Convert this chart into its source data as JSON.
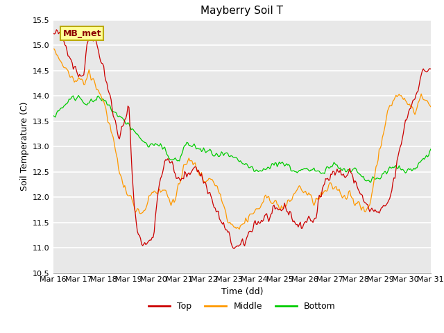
{
  "title": "Mayberry Soil T",
  "xlabel": "Time (dd)",
  "ylabel": "Soil Temperature (C)",
  "annotation": "MB_met",
  "ylim": [
    10.5,
    15.5
  ],
  "yticks": [
    10.5,
    11.0,
    11.5,
    12.0,
    12.5,
    13.0,
    13.5,
    14.0,
    14.5,
    15.0,
    15.5
  ],
  "xtick_labels": [
    "Mar 16",
    "Mar 17",
    "Mar 18",
    "Mar 19",
    "Mar 20",
    "Mar 21",
    "Mar 22",
    "Mar 23",
    "Mar 24",
    "Mar 25",
    "Mar 26",
    "Mar 27",
    "Mar 28",
    "Mar 29",
    "Mar 30",
    "Mar 31"
  ],
  "colors": {
    "top": "#cc0000",
    "middle": "#ff9900",
    "bottom": "#00cc00",
    "bg": "#e8e8e8",
    "plot_bg": "#e8e8e8",
    "annotation_bg": "#ffff99",
    "annotation_border": "#bbaa00"
  },
  "legend_labels": [
    "Top",
    "Middle",
    "Bottom"
  ],
  "seed": 42,
  "n_points": 360,
  "top_base": [
    15.2,
    15.25,
    15.1,
    14.9,
    14.6,
    14.45,
    14.4,
    15.2,
    15.2,
    14.9,
    14.55,
    14.1,
    13.6,
    13.2,
    13.4,
    13.8,
    11.9,
    11.2,
    11.05,
    11.1,
    11.3,
    12.3,
    12.6,
    12.8,
    12.5,
    12.3,
    12.4,
    12.5,
    12.6,
    12.5,
    12.3,
    12.1,
    11.8,
    11.6,
    11.4,
    11.2,
    11.0,
    11.0,
    11.1,
    11.3,
    11.5,
    11.5,
    11.6,
    11.6,
    11.7,
    11.75,
    11.8,
    11.7,
    11.5,
    11.4,
    11.5,
    11.6,
    11.5,
    12.0,
    12.3,
    12.5,
    12.5,
    12.5,
    12.4,
    12.5,
    12.3,
    12.1,
    11.85,
    11.75,
    11.7,
    11.7,
    11.8,
    12.0,
    12.5,
    13.0,
    13.5,
    13.8,
    14.0,
    14.4,
    14.5,
    14.55
  ],
  "middle_base": [
    14.9,
    14.75,
    14.6,
    14.4,
    14.3,
    14.4,
    14.2,
    14.45,
    14.3,
    14.1,
    13.9,
    13.5,
    13.1,
    12.5,
    12.2,
    12.1,
    11.8,
    11.75,
    11.7,
    12.0,
    12.15,
    12.1,
    12.15,
    12.0,
    11.85,
    12.2,
    12.7,
    12.7,
    12.65,
    12.5,
    12.3,
    12.4,
    12.3,
    12.1,
    11.8,
    11.5,
    11.45,
    11.4,
    11.5,
    11.65,
    11.7,
    11.8,
    11.95,
    12.0,
    11.9,
    11.8,
    11.8,
    11.9,
    12.1,
    12.2,
    12.1,
    12.0,
    11.9,
    12.0,
    12.1,
    12.2,
    12.2,
    12.1,
    12.0,
    12.1,
    11.9,
    11.8,
    11.7,
    11.9,
    12.5,
    13.0,
    13.5,
    13.8,
    14.0,
    14.0,
    13.9,
    13.8,
    13.7,
    14.0,
    13.9,
    13.8
  ],
  "bottom_base": [
    13.6,
    13.7,
    13.8,
    13.9,
    13.95,
    14.0,
    13.9,
    13.85,
    13.9,
    13.95,
    13.9,
    13.8,
    13.7,
    13.6,
    13.5,
    13.45,
    13.3,
    13.2,
    13.1,
    13.0,
    13.05,
    13.0,
    12.95,
    12.8,
    12.75,
    12.7,
    13.0,
    13.05,
    13.0,
    12.95,
    12.9,
    12.9,
    12.85,
    12.8,
    12.85,
    12.8,
    12.75,
    12.7,
    12.65,
    12.6,
    12.5,
    12.5,
    12.55,
    12.6,
    12.65,
    12.7,
    12.65,
    12.6,
    12.5,
    12.5,
    12.55,
    12.5,
    12.55,
    12.5,
    12.55,
    12.6,
    12.65,
    12.6,
    12.5,
    12.5,
    12.55,
    12.4,
    12.35,
    12.3,
    12.35,
    12.4,
    12.5,
    12.55,
    12.6,
    12.55,
    12.5,
    12.55,
    12.6,
    12.7,
    12.8,
    12.9
  ]
}
